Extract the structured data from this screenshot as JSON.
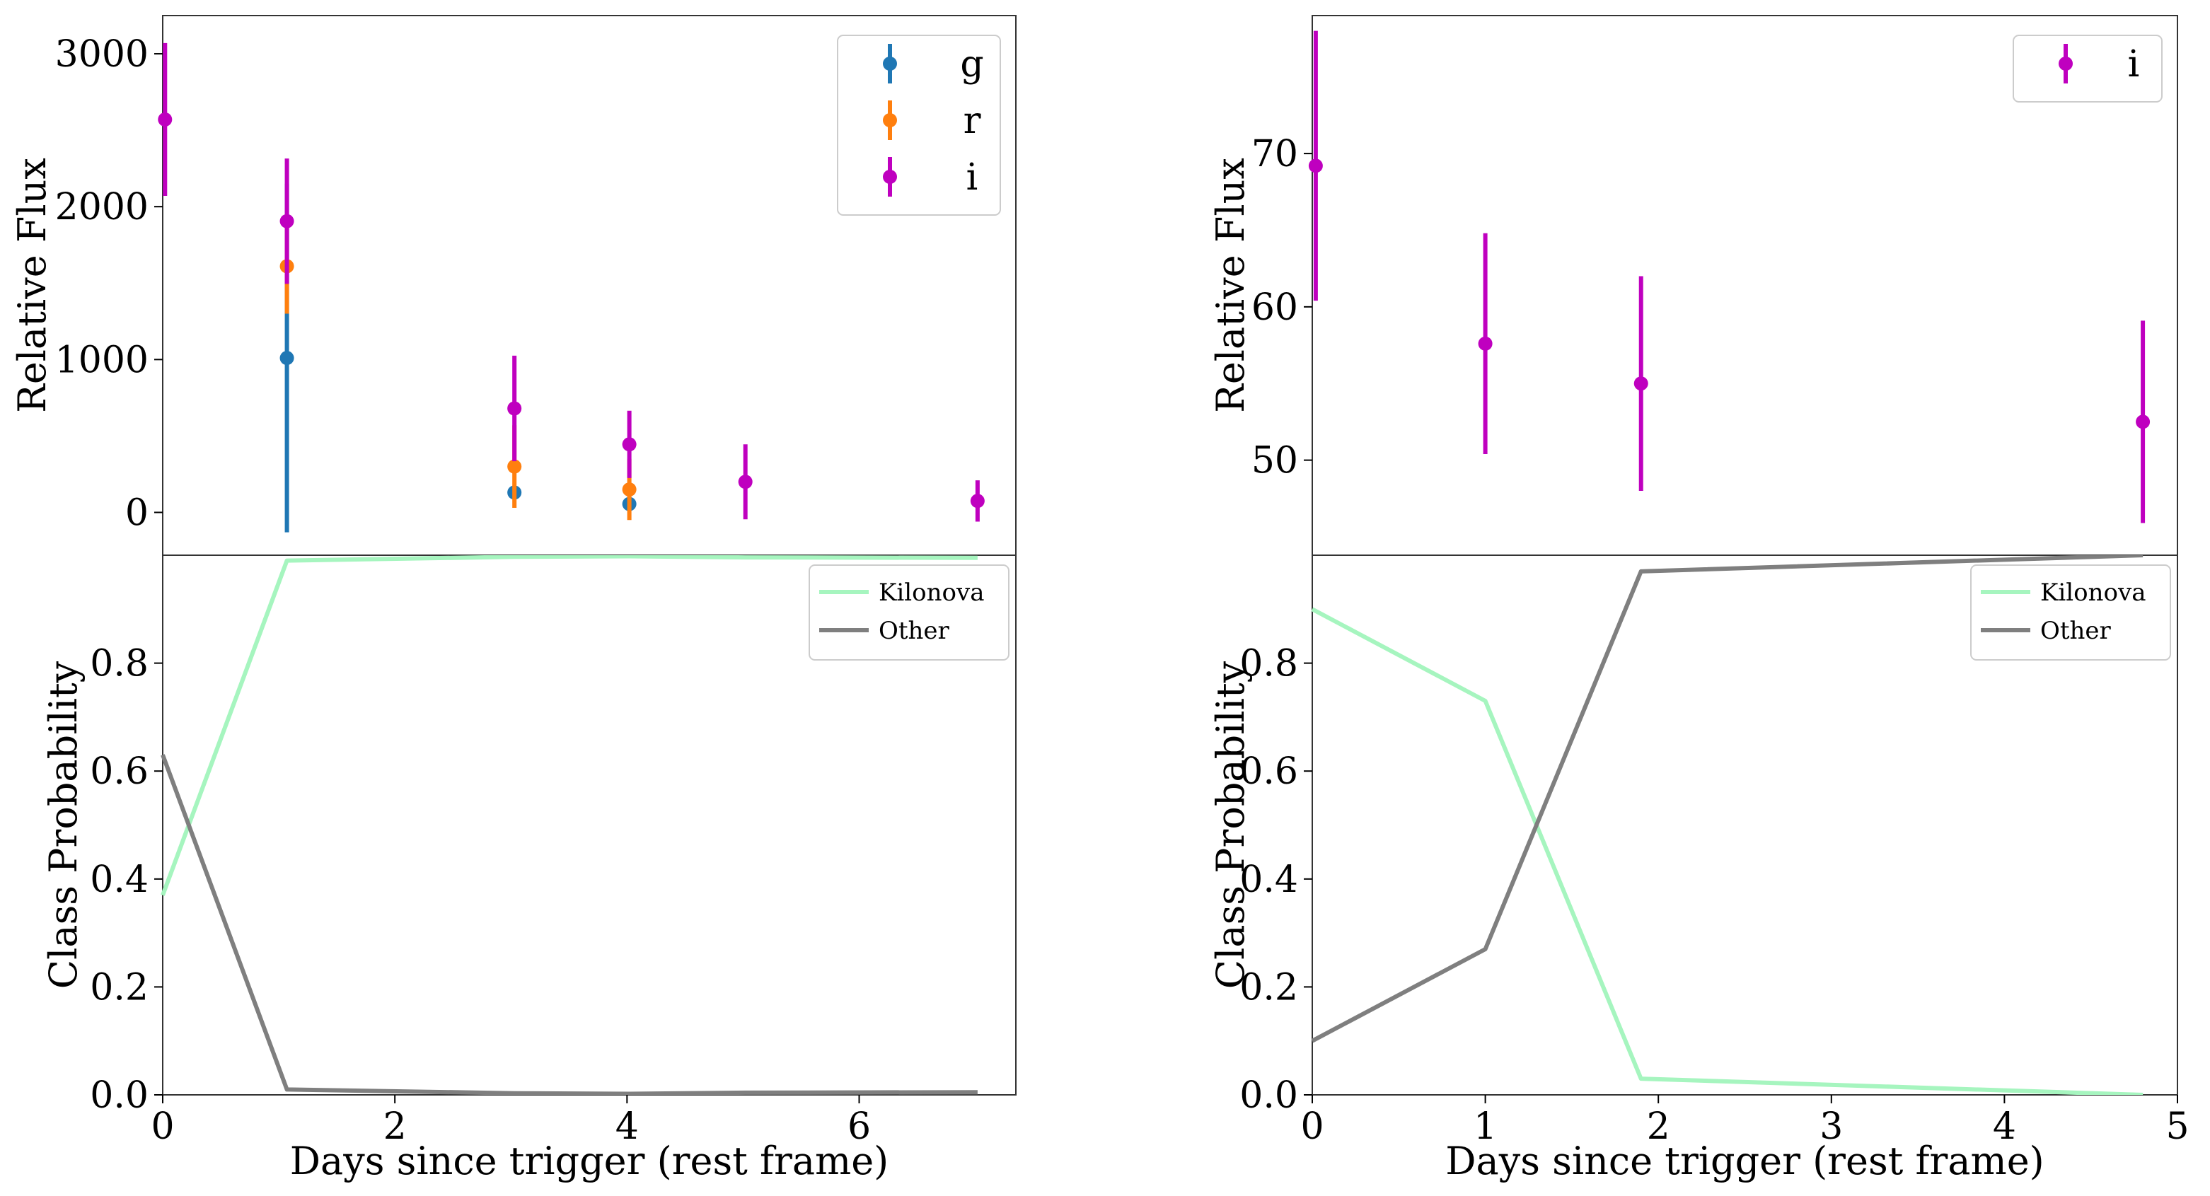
{
  "chart_data": [
    {
      "type": "scatter",
      "panel": "top-left",
      "ylabel": "Relative Flux",
      "xlim": [
        0,
        7.35
      ],
      "ylim": [
        -280,
        3250
      ],
      "yticks": [
        0,
        1000,
        2000,
        3000
      ],
      "legend": "top-right",
      "series": [
        {
          "name": "g",
          "color": "#1f77b4",
          "x": [
            1.07,
            3.03,
            4.02
          ],
          "y": [
            1010,
            130,
            55
          ],
          "err": [
            1140,
            0,
            0
          ]
        },
        {
          "name": "r",
          "color": "#ff7f0e",
          "x": [
            1.07,
            3.03,
            4.02
          ],
          "y": [
            1610,
            300,
            150
          ],
          "err": [
            310,
            270,
            200
          ]
        },
        {
          "name": "i",
          "color": "#bf00bf",
          "x": [
            0.02,
            1.07,
            3.03,
            4.02,
            5.02,
            7.02
          ],
          "y": [
            2570,
            1905,
            680,
            445,
            200,
            75
          ],
          "err": [
            500,
            410,
            345,
            220,
            245,
            135
          ]
        }
      ]
    },
    {
      "type": "line",
      "panel": "bottom-left",
      "xlabel": "Days since trigger (rest frame)",
      "ylabel": "Class Probability",
      "xlim": [
        0,
        7.35
      ],
      "ylim": [
        0,
        1.0
      ],
      "xticks": [
        0,
        2,
        4,
        6
      ],
      "yticks": [
        0.0,
        0.2,
        0.4,
        0.6,
        0.8
      ],
      "legend": "top-right",
      "series": [
        {
          "name": "Kilonova",
          "color": "#a6f5bf",
          "x": [
            0,
            1.07,
            3.03,
            4.02,
            5.02,
            7.02
          ],
          "y": [
            0.37,
            0.99,
            0.997,
            0.998,
            0.996,
            0.995
          ]
        },
        {
          "name": "Other",
          "color": "#7f7f7f",
          "x": [
            0,
            1.07,
            3.03,
            4.02,
            5.02,
            7.02
          ],
          "y": [
            0.63,
            0.01,
            0.003,
            0.002,
            0.004,
            0.005
          ]
        }
      ]
    },
    {
      "type": "scatter",
      "panel": "top-right",
      "ylabel": "Relative Flux",
      "xlim": [
        0,
        5.0
      ],
      "ylim": [
        43.8,
        79.0
      ],
      "yticks": [
        50,
        60,
        70
      ],
      "legend": "top-right",
      "series": [
        {
          "name": "i",
          "color": "#bf00bf",
          "x": [
            0.02,
            1.0,
            1.9,
            4.8
          ],
          "y": [
            69.2,
            57.6,
            55.0,
            52.5
          ],
          "err": [
            8.8,
            7.2,
            7.0,
            6.6
          ]
        }
      ]
    },
    {
      "type": "line",
      "panel": "bottom-right",
      "xlabel": "Days since trigger (rest frame)",
      "ylabel": "Class Probability",
      "xlim": [
        0,
        5.0
      ],
      "ylim": [
        0,
        1.0
      ],
      "xticks": [
        0,
        1,
        2,
        3,
        4,
        5
      ],
      "yticks": [
        0.0,
        0.2,
        0.4,
        0.6,
        0.8
      ],
      "legend": "top-right",
      "series": [
        {
          "name": "Kilonova",
          "color": "#a6f5bf",
          "x": [
            0,
            1.0,
            1.9,
            4.8
          ],
          "y": [
            0.9,
            0.73,
            0.03,
            0.0
          ]
        },
        {
          "name": "Other",
          "color": "#7f7f7f",
          "x": [
            0,
            1.0,
            1.9,
            4.8
          ],
          "y": [
            0.1,
            0.27,
            0.97,
            1.0
          ]
        }
      ]
    }
  ]
}
